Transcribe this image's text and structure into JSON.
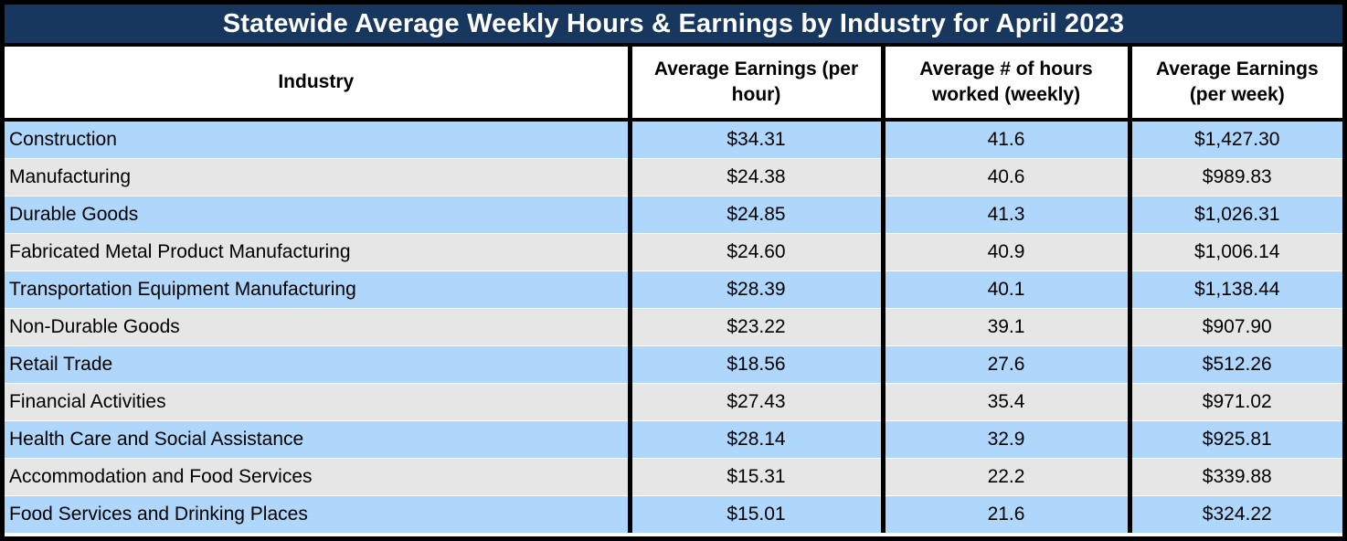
{
  "title": "Statewide Average Weekly Hours & Earnings by Industry for April 2023",
  "colors": {
    "title_bg": "#17375E",
    "title_text": "#FFFFFF",
    "row_alt_blue": "#AFD6FB",
    "row_alt_gray": "#E6E6E6",
    "border": "#000000"
  },
  "table": {
    "columns": [
      "Industry",
      "Average Earnings (per hour)",
      "Average # of hours worked (weekly)",
      "Average Earnings (per week)"
    ],
    "rows": [
      {
        "industry": "Construction",
        "hourly": "$34.31",
        "hours": "41.6",
        "weekly": "$1,427.30"
      },
      {
        "industry": "Manufacturing",
        "hourly": "$24.38",
        "hours": "40.6",
        "weekly": "$989.83"
      },
      {
        "industry": "Durable Goods",
        "hourly": "$24.85",
        "hours": "41.3",
        "weekly": "$1,026.31"
      },
      {
        "industry": "Fabricated Metal Product Manufacturing",
        "hourly": "$24.60",
        "hours": "40.9",
        "weekly": "$1,006.14"
      },
      {
        "industry": "Transportation Equipment Manufacturing",
        "hourly": "$28.39",
        "hours": "40.1",
        "weekly": "$1,138.44"
      },
      {
        "industry": "Non-Durable Goods",
        "hourly": "$23.22",
        "hours": "39.1",
        "weekly": "$907.90"
      },
      {
        "industry": "Retail Trade",
        "hourly": "$18.56",
        "hours": "27.6",
        "weekly": "$512.26"
      },
      {
        "industry": "Financial Activities",
        "hourly": "$27.43",
        "hours": "35.4",
        "weekly": "$971.02"
      },
      {
        "industry": "Health Care and Social Assistance",
        "hourly": "$28.14",
        "hours": "32.9",
        "weekly": "$925.81"
      },
      {
        "industry": "Accommodation and Food Services",
        "hourly": "$15.31",
        "hours": "22.2",
        "weekly": "$339.88"
      },
      {
        "industry": "Food Services and Drinking Places",
        "hourly": "$15.01",
        "hours": "21.6",
        "weekly": "$324.22"
      }
    ]
  },
  "chart_data": {
    "type": "table",
    "title": "Statewide Average Weekly Hours & Earnings by Industry for April 2023",
    "categories": [
      "Construction",
      "Manufacturing",
      "Durable Goods",
      "Fabricated Metal Product Manufacturing",
      "Transportation Equipment Manufacturing",
      "Non-Durable Goods",
      "Retail Trade",
      "Financial Activities",
      "Health Care and Social Assistance",
      "Accommodation and Food Services",
      "Food Services and Drinking Places"
    ],
    "series": [
      {
        "name": "Average Earnings (per hour)",
        "values": [
          34.31,
          24.38,
          24.85,
          24.6,
          28.39,
          23.22,
          18.56,
          27.43,
          28.14,
          15.31,
          15.01
        ]
      },
      {
        "name": "Average # of hours worked (weekly)",
        "values": [
          41.6,
          40.6,
          41.3,
          40.9,
          40.1,
          39.1,
          27.6,
          35.4,
          32.9,
          22.2,
          21.6
        ]
      },
      {
        "name": "Average Earnings (per week)",
        "values": [
          1427.3,
          989.83,
          1026.31,
          1006.14,
          1138.44,
          907.9,
          512.26,
          971.02,
          925.81,
          339.88,
          324.22
        ]
      }
    ],
    "layout": {
      "row_striping": [
        "blue",
        "gray"
      ],
      "header_style": "bold centered",
      "grid": "black column separators, white row separators"
    }
  }
}
